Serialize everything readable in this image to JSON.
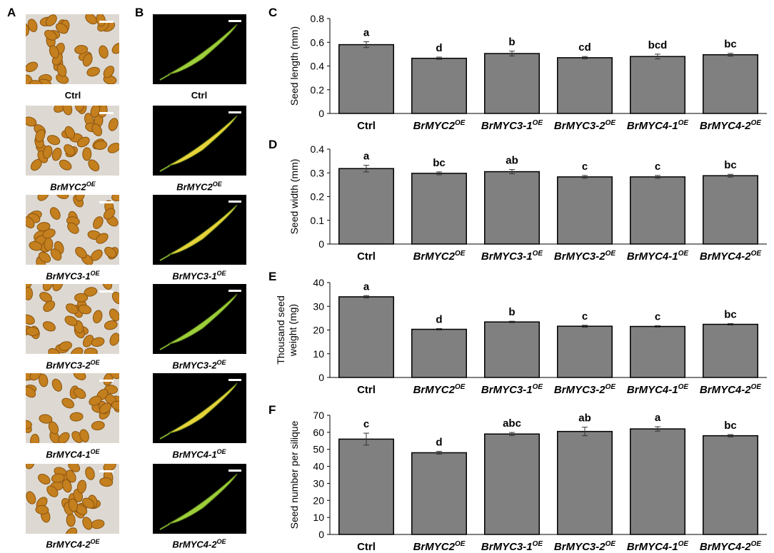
{
  "panels": {
    "a": "A",
    "b": "B",
    "c": "C",
    "d": "D",
    "e": "E",
    "f": "F"
  },
  "photo_captions": [
    {
      "base": "Ctrl",
      "sup": ""
    },
    {
      "base": "BrMYC2",
      "sup": "OE"
    },
    {
      "base": "BrMYC3-1",
      "sup": "OE"
    },
    {
      "base": "BrMYC3-2",
      "sup": "OE"
    },
    {
      "base": "BrMYC4-1",
      "sup": "OE"
    },
    {
      "base": "BrMYC4-2",
      "sup": "OE"
    }
  ],
  "colors": {
    "bar": "#808080",
    "seed": "#c47f1e",
    "seed_dark": "#8a5410",
    "pod_green": "#9ccf3a",
    "pod_yellow": "#e8d23a"
  },
  "chart_data": [
    {
      "id": "C",
      "type": "bar",
      "ylabel": "Seed length (mm)",
      "ylim": [
        0,
        0.8
      ],
      "yticks": [
        "0",
        "0.2",
        "0.4",
        "0.6",
        "0.8"
      ],
      "categories": [
        "Ctrl",
        "BrMYC2",
        "BrMYC3-1",
        "BrMYC3-2",
        "BrMYC4-1",
        "BrMYC4-2"
      ],
      "category_sup": [
        "",
        "OE",
        "OE",
        "OE",
        "OE",
        "OE"
      ],
      "values": [
        0.58,
        0.465,
        0.505,
        0.47,
        0.48,
        0.495
      ],
      "errors": [
        0.025,
        0.01,
        0.02,
        0.01,
        0.02,
        0.012
      ],
      "letters": [
        "a",
        "d",
        "b",
        "cd",
        "bcd",
        "bc"
      ]
    },
    {
      "id": "D",
      "type": "bar",
      "ylabel": "Seed width (mm)",
      "ylim": [
        0,
        0.4
      ],
      "yticks": [
        "0",
        "0.1",
        "0.2",
        "0.3",
        "0.4"
      ],
      "categories": [
        "Ctrl",
        "BrMYC2",
        "BrMYC3-1",
        "BrMYC3-2",
        "BrMYC4-1",
        "BrMYC4-2"
      ],
      "category_sup": [
        "",
        "OE",
        "OE",
        "OE",
        "OE",
        "OE"
      ],
      "values": [
        0.318,
        0.298,
        0.305,
        0.283,
        0.283,
        0.288
      ],
      "errors": [
        0.014,
        0.006,
        0.009,
        0.006,
        0.006,
        0.006
      ],
      "letters": [
        "a",
        "bc",
        "ab",
        "c",
        "c",
        "bc"
      ]
    },
    {
      "id": "E",
      "type": "bar",
      "ylabel": "Thousand seed weight (mg)",
      "ylabel_lines": [
        "Thousand seed",
        "weight (mg)"
      ],
      "ylim": [
        0,
        40
      ],
      "yticks": [
        "0",
        "10",
        "20",
        "30",
        "40"
      ],
      "categories": [
        "Ctrl",
        "BrMYC2",
        "BrMYC3-1",
        "BrMYC3-2",
        "BrMYC4-1",
        "BrMYC4-2"
      ],
      "category_sup": [
        "",
        "OE",
        "OE",
        "OE",
        "OE",
        "OE"
      ],
      "values": [
        34,
        20.3,
        23.4,
        21.6,
        21.5,
        22.4
      ],
      "errors": [
        0.5,
        0.3,
        0.3,
        0.4,
        0.3,
        0.3
      ],
      "letters": [
        "a",
        "d",
        "b",
        "c",
        "c",
        "bc"
      ]
    },
    {
      "id": "F",
      "type": "bar",
      "ylabel": "Seed number per silique",
      "ylim": [
        0,
        70
      ],
      "yticks": [
        "0",
        "10",
        "20",
        "30",
        "40",
        "50",
        "60",
        "70"
      ],
      "categories": [
        "Ctrl",
        "BrMYC2",
        "BrMYC3-1",
        "BrMYC3-2",
        "BrMYC4-1",
        "BrMYC4-2"
      ],
      "category_sup": [
        "",
        "OE",
        "OE",
        "OE",
        "OE",
        "OE"
      ],
      "values": [
        56,
        48,
        59,
        60.5,
        62,
        58
      ],
      "errors": [
        3.5,
        0.8,
        0.9,
        2.5,
        1.3,
        0.7
      ],
      "letters": [
        "c",
        "d",
        "abc",
        "ab",
        "a",
        "bc"
      ]
    }
  ]
}
